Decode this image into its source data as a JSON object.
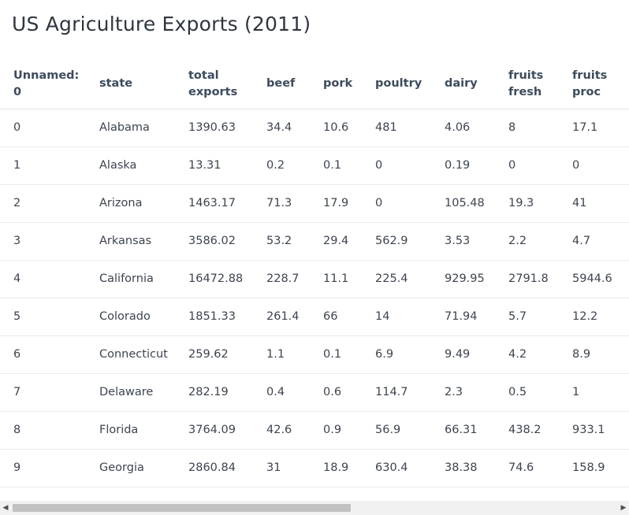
{
  "title": "US Agriculture Exports (2011)",
  "table": {
    "headers": [
      {
        "line1": "Unnamed:",
        "line2": "0"
      },
      {
        "line1": "state",
        "line2": ""
      },
      {
        "line1": "total",
        "line2": "exports"
      },
      {
        "line1": "beef",
        "line2": ""
      },
      {
        "line1": "pork",
        "line2": ""
      },
      {
        "line1": "poultry",
        "line2": ""
      },
      {
        "line1": "dairy",
        "line2": ""
      },
      {
        "line1": "fruits",
        "line2": "fresh"
      },
      {
        "line1": "fruits",
        "line2": "proc"
      }
    ],
    "rows": [
      [
        "0",
        "Alabama",
        "1390.63",
        "34.4",
        "10.6",
        "481",
        "4.06",
        "8",
        "17.1"
      ],
      [
        "1",
        "Alaska",
        "13.31",
        "0.2",
        "0.1",
        "0",
        "0.19",
        "0",
        "0"
      ],
      [
        "2",
        "Arizona",
        "1463.17",
        "71.3",
        "17.9",
        "0",
        "105.48",
        "19.3",
        "41"
      ],
      [
        "3",
        "Arkansas",
        "3586.02",
        "53.2",
        "29.4",
        "562.9",
        "3.53",
        "2.2",
        "4.7"
      ],
      [
        "4",
        "California",
        "16472.88",
        "228.7",
        "11.1",
        "225.4",
        "929.95",
        "2791.8",
        "5944.6"
      ],
      [
        "5",
        "Colorado",
        "1851.33",
        "261.4",
        "66",
        "14",
        "71.94",
        "5.7",
        "12.2"
      ],
      [
        "6",
        "Connecticut",
        "259.62",
        "1.1",
        "0.1",
        "6.9",
        "9.49",
        "4.2",
        "8.9"
      ],
      [
        "7",
        "Delaware",
        "282.19",
        "0.4",
        "0.6",
        "114.7",
        "2.3",
        "0.5",
        "1"
      ],
      [
        "8",
        "Florida",
        "3764.09",
        "42.6",
        "0.9",
        "56.9",
        "66.31",
        "438.2",
        "933.1"
      ],
      [
        "9",
        "Georgia",
        "2860.84",
        "31",
        "18.9",
        "630.4",
        "38.38",
        "74.6",
        "158.9"
      ]
    ]
  },
  "scrollbar": {
    "left_arrow": "◀",
    "right_arrow": "▶",
    "thumb_fraction": 0.56
  }
}
